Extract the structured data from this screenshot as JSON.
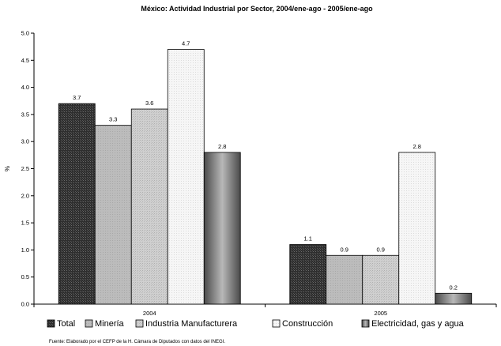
{
  "chart_data": {
    "type": "bar",
    "title": "México: Actividad Industrial por Sector, 2004/ene-ago - 2005/ene-ago",
    "ylabel": "%",
    "xlabel": "",
    "ylim": [
      0,
      5.0
    ],
    "yticks": [
      "0.0",
      "0.5",
      "1.0",
      "1.5",
      "2.0",
      "2.5",
      "3.0",
      "3.5",
      "4.0",
      "4.5",
      "5.0"
    ],
    "categories": [
      "2004",
      "2005"
    ],
    "series": [
      {
        "name": "Total",
        "values": [
          3.7,
          1.1
        ],
        "labels": [
          "3.7",
          "1.1"
        ],
        "color": "#333333"
      },
      {
        "name": "Minería",
        "values": [
          3.3,
          0.9
        ],
        "labels": [
          "3.3",
          "0.9"
        ],
        "color": "#b9b9b9"
      },
      {
        "name": "Industria Manufacturera",
        "values": [
          3.6,
          0.9
        ],
        "labels": [
          "3.6",
          "0.9"
        ],
        "color": "#cdcdcd"
      },
      {
        "name": "Construcción",
        "values": [
          4.7,
          2.8
        ],
        "labels": [
          "4.7",
          "2.8"
        ],
        "color": "#f4f4f4"
      },
      {
        "name": "Electricidad, gas y agua",
        "values": [
          2.8,
          0.2
        ],
        "labels": [
          "2.8",
          "0.2"
        ],
        "color": "#7a7a7a"
      }
    ],
    "legend_position": "bottom",
    "grid": false
  },
  "source_note": "Fuente: Elaborado por el CEFP de la H. Cámara de Diputados con datos del INEGI."
}
